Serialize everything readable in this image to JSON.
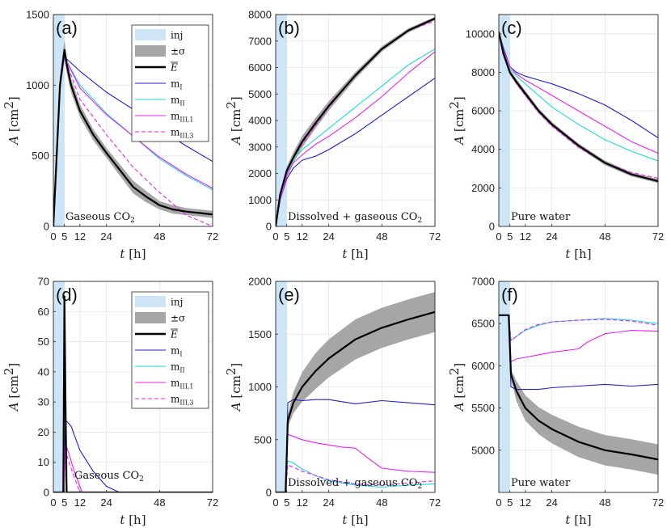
{
  "figure": {
    "xlabel_var": "t",
    "xlabel_unit": "[h]",
    "ylabel_var": "A",
    "ylabel_unit_base": "[cm",
    "ylabel_unit_exp": "2",
    "ylabel_unit_close": "]"
  },
  "legend": {
    "entries": [
      {
        "key": "inj",
        "label": "inj",
        "style": "patch",
        "color": "#cce5f7"
      },
      {
        "key": "sigma",
        "label": "±σ",
        "style": "band",
        "color": "#a6a6a6"
      },
      {
        "key": "E",
        "label": "E",
        "style": "thick",
        "color": "#000000"
      },
      {
        "key": "mI",
        "label": "m",
        "sub": "I",
        "style": "line",
        "color": "#1f1fd2"
      },
      {
        "key": "mII",
        "label": "m",
        "sub": "II",
        "style": "line",
        "color": "#19d9d9"
      },
      {
        "key": "mIII1",
        "label": "m",
        "sub": "III,1",
        "style": "line",
        "color": "#ee1fee"
      },
      {
        "key": "mIII3",
        "label": "m",
        "sub": "III,3",
        "style": "dashed",
        "color": "#ee1fee"
      }
    ]
  },
  "chart_data": [
    {
      "id": "a",
      "label": "(a)",
      "type": "line",
      "annotation": {
        "text": "Gaseous CO",
        "sub": "2"
      },
      "xticks": [
        0,
        5,
        12,
        24,
        48,
        72
      ],
      "xlim": [
        0,
        72
      ],
      "ylim": [
        0,
        1500
      ],
      "yticks": [
        0,
        500,
        1000,
        1500
      ],
      "inj": [
        0,
        5
      ],
      "legend": true,
      "E": {
        "x": [
          0,
          3,
          5,
          6,
          8,
          12,
          18,
          24,
          30,
          36,
          42,
          48,
          54,
          60,
          66,
          72
        ],
        "y": [
          0,
          1000,
          1250,
          1150,
          1000,
          820,
          650,
          520,
          400,
          280,
          210,
          150,
          120,
          105,
          95,
          85
        ]
      },
      "sigma": [
        0,
        60,
        70,
        60,
        50,
        45,
        40,
        35,
        40,
        45,
        40,
        30,
        30,
        25,
        25,
        25
      ],
      "series": [
        {
          "key": "mI",
          "x": [
            0,
            3,
            5,
            12,
            24,
            36,
            48,
            60,
            72
          ],
          "y": [
            0,
            1000,
            1200,
            1100,
            950,
            830,
            690,
            570,
            460
          ]
        },
        {
          "key": "mII",
          "x": [
            0,
            3,
            5,
            12,
            24,
            36,
            48,
            60,
            72
          ],
          "y": [
            0,
            1000,
            1200,
            1000,
            800,
            640,
            480,
            360,
            260
          ]
        },
        {
          "key": "mIII1",
          "x": [
            0,
            3,
            5,
            12,
            24,
            36,
            48,
            60,
            72
          ],
          "y": [
            0,
            1000,
            1200,
            980,
            790,
            640,
            490,
            370,
            270
          ]
        },
        {
          "key": "mIII3",
          "x": [
            0,
            3,
            5,
            12,
            24,
            36,
            48,
            60,
            72
          ],
          "y": [
            0,
            1000,
            1200,
            900,
            650,
            420,
            240,
            80,
            0
          ]
        }
      ]
    },
    {
      "id": "b",
      "label": "(b)",
      "type": "line",
      "annotation": {
        "text": "Dissolved + gaseous CO",
        "sub": "2"
      },
      "xticks": [
        0,
        5,
        12,
        24,
        48,
        72
      ],
      "xlim": [
        0,
        72
      ],
      "ylim": [
        0,
        8000
      ],
      "yticks": [
        0,
        1000,
        2000,
        3000,
        4000,
        5000,
        6000,
        7000,
        8000
      ],
      "inj": [
        0,
        5
      ],
      "legend": false,
      "E": {
        "x": [
          0,
          2,
          5,
          8,
          12,
          18,
          24,
          36,
          48,
          60,
          72
        ],
        "y": [
          0,
          1200,
          2100,
          2600,
          3200,
          3900,
          4550,
          5700,
          6700,
          7400,
          7850
        ]
      },
      "sigma": [
        0,
        120,
        150,
        200,
        220,
        200,
        180,
        130,
        100,
        80,
        60
      ],
      "series": [
        {
          "key": "mI",
          "x": [
            0,
            2,
            5,
            8,
            12,
            18,
            24,
            36,
            48,
            60,
            72
          ],
          "y": [
            0,
            1000,
            1800,
            2200,
            2500,
            2650,
            2900,
            3500,
            4200,
            4900,
            5600
          ]
        },
        {
          "key": "mII",
          "x": [
            0,
            2,
            5,
            8,
            12,
            18,
            24,
            36,
            48,
            60,
            72
          ],
          "y": [
            0,
            1000,
            1900,
            2500,
            2900,
            3300,
            3700,
            4500,
            5300,
            6100,
            6700
          ]
        },
        {
          "key": "mIII1",
          "x": [
            0,
            2,
            5,
            8,
            12,
            18,
            24,
            36,
            48,
            60,
            72
          ],
          "y": [
            0,
            1000,
            1900,
            2400,
            2700,
            3100,
            3400,
            4100,
            4900,
            5800,
            6600
          ]
        },
        {
          "key": "mIII3",
          "x": [
            0,
            2,
            5,
            8,
            12,
            18,
            24,
            36,
            48,
            60,
            72
          ],
          "y": [
            0,
            1100,
            2050,
            2600,
            3100,
            3800,
            4500,
            5700,
            6700,
            7400,
            7750
          ]
        }
      ]
    },
    {
      "id": "c",
      "label": "(c)",
      "type": "line",
      "annotation": {
        "text": "Pure water",
        "sub": ""
      },
      "xticks": [
        0,
        5,
        12,
        24,
        48,
        72
      ],
      "xlim": [
        0,
        72
      ],
      "ylim": [
        0,
        11000
      ],
      "yticks": [
        0,
        2000,
        4000,
        6000,
        8000,
        10000
      ],
      "inj": [
        0,
        5
      ],
      "legend": false,
      "E": {
        "x": [
          0,
          2,
          5,
          8,
          12,
          18,
          24,
          36,
          48,
          60,
          72
        ],
        "y": [
          10100,
          9000,
          8000,
          7500,
          6900,
          6000,
          5300,
          4200,
          3300,
          2700,
          2350
        ]
      },
      "sigma": [
        150,
        150,
        150,
        150,
        150,
        130,
        120,
        110,
        120,
        110,
        100
      ],
      "series": [
        {
          "key": "mI",
          "x": [
            0,
            2,
            5,
            8,
            12,
            18,
            24,
            36,
            48,
            60,
            72
          ],
          "y": [
            10100,
            9300,
            8300,
            8000,
            7800,
            7600,
            7400,
            6900,
            6300,
            5500,
            4600
          ]
        },
        {
          "key": "mII",
          "x": [
            0,
            2,
            5,
            8,
            12,
            18,
            24,
            36,
            48,
            60,
            72
          ],
          "y": [
            10100,
            9200,
            8200,
            7800,
            7400,
            6800,
            6200,
            5300,
            4500,
            3900,
            3400
          ]
        },
        {
          "key": "mIII1",
          "x": [
            0,
            2,
            5,
            8,
            12,
            18,
            24,
            36,
            48,
            60,
            72
          ],
          "y": [
            10100,
            9200,
            8300,
            7900,
            7600,
            7200,
            6800,
            6000,
            5200,
            4400,
            3800
          ]
        },
        {
          "key": "mIII3",
          "x": [
            0,
            2,
            5,
            8,
            12,
            18,
            24,
            36,
            48,
            60,
            72
          ],
          "y": [
            10100,
            9100,
            8000,
            7400,
            6800,
            5900,
            5200,
            4100,
            3300,
            2800,
            2500
          ]
        }
      ]
    },
    {
      "id": "d",
      "label": "(d)",
      "type": "line",
      "annotation": {
        "text": "Gaseous CO",
        "sub": "2"
      },
      "xticks": [
        0,
        5,
        12,
        24,
        48,
        72
      ],
      "xlim": [
        0,
        72
      ],
      "ylim": [
        0,
        70
      ],
      "yticks": [
        0,
        10,
        20,
        30,
        40,
        50,
        60,
        70
      ],
      "inj": [
        0,
        5
      ],
      "legend": true,
      "E": {
        "x": [
          0,
          4.5,
          5,
          5.5,
          6,
          72
        ],
        "y": [
          0,
          0,
          65,
          30,
          0,
          0
        ]
      },
      "sigma": [
        0,
        0,
        0,
        0,
        0,
        0
      ],
      "series": [
        {
          "key": "mI",
          "x": [
            0,
            4.8,
            5.5,
            8,
            12,
            18,
            24,
            30,
            72
          ],
          "y": [
            0,
            0,
            24,
            22,
            14,
            7,
            2,
            0,
            0
          ]
        },
        {
          "key": "mII",
          "x": [
            0,
            4.8,
            5,
            5.5,
            6,
            7,
            72
          ],
          "y": [
            0,
            0,
            65,
            35,
            0,
            0,
            0
          ]
        },
        {
          "key": "mIII1",
          "x": [
            0,
            4.8,
            5.5,
            7,
            9,
            12,
            13,
            72
          ],
          "y": [
            0,
            0,
            16,
            13,
            8,
            2,
            0,
            0
          ]
        },
        {
          "key": "mIII3",
          "x": [
            0,
            4.8,
            5.5,
            7,
            9,
            11,
            12,
            72
          ],
          "y": [
            0,
            0,
            14,
            10,
            6,
            2,
            0,
            0
          ]
        }
      ]
    },
    {
      "id": "e",
      "label": "(e)",
      "type": "line",
      "annotation": {
        "text": "Dissolved + gaseous CO",
        "sub": "2"
      },
      "xticks": [
        0,
        5,
        12,
        24,
        48,
        72
      ],
      "xlim": [
        0,
        72
      ],
      "ylim": [
        0,
        2000
      ],
      "yticks": [
        0,
        500,
        1000,
        1500,
        2000
      ],
      "inj": [
        0,
        5
      ],
      "legend": false,
      "E": {
        "x": [
          0,
          4.5,
          5.5,
          8,
          12,
          18,
          24,
          36,
          48,
          60,
          72
        ],
        "y": [
          0,
          0,
          680,
          850,
          1000,
          1150,
          1270,
          1450,
          1560,
          1640,
          1710
        ]
      },
      "sigma": [
        0,
        0,
        60,
        100,
        140,
        170,
        180,
        190,
        190,
        190,
        190
      ],
      "series": [
        {
          "key": "mI",
          "x": [
            0,
            4.5,
            5.5,
            8,
            12,
            18,
            24,
            30,
            36,
            48,
            60,
            72
          ],
          "y": [
            0,
            0,
            850,
            880,
            870,
            880,
            880,
            860,
            840,
            870,
            850,
            830
          ]
        },
        {
          "key": "mII",
          "x": [
            0,
            4.5,
            5.5,
            8,
            12,
            18,
            24,
            36,
            48,
            60,
            72
          ],
          "y": [
            0,
            0,
            300,
            280,
            220,
            160,
            110,
            70,
            50,
            70,
            80
          ]
        },
        {
          "key": "mIII1",
          "x": [
            0,
            4.5,
            5.5,
            8,
            12,
            18,
            24,
            30,
            36,
            42,
            48,
            60,
            72
          ],
          "y": [
            0,
            0,
            550,
            530,
            500,
            470,
            450,
            430,
            420,
            320,
            230,
            200,
            190
          ]
        },
        {
          "key": "mIII3",
          "x": [
            0,
            4.5,
            5.5,
            8,
            12,
            18,
            24,
            36,
            48,
            60,
            72
          ],
          "y": [
            0,
            0,
            260,
            240,
            200,
            160,
            120,
            80,
            70,
            90,
            110
          ]
        }
      ]
    },
    {
      "id": "f",
      "label": "(f)",
      "type": "line",
      "annotation": {
        "text": "Pure water",
        "sub": ""
      },
      "xticks": [
        0,
        5,
        12,
        24,
        48,
        72
      ],
      "xlim": [
        0,
        72
      ],
      "ylim": [
        4500,
        7000
      ],
      "yticks": [
        5000,
        5500,
        6000,
        6500,
        7000
      ],
      "inj": [
        0,
        5
      ],
      "legend": false,
      "E": {
        "x": [
          0,
          4.5,
          5.5,
          8,
          12,
          18,
          24,
          36,
          48,
          60,
          72
        ],
        "y": [
          6600,
          6600,
          5900,
          5700,
          5500,
          5350,
          5250,
          5100,
          5000,
          4950,
          4890
        ]
      },
      "sigma": [
        0,
        0,
        60,
        120,
        150,
        160,
        170,
        180,
        180,
        180,
        180
      ],
      "series": [
        {
          "key": "mI",
          "x": [
            0,
            4.5,
            5.5,
            8,
            12,
            18,
            24,
            36,
            48,
            60,
            72
          ],
          "y": [
            6600,
            6600,
            5750,
            5720,
            5720,
            5720,
            5740,
            5760,
            5780,
            5760,
            5780
          ]
        },
        {
          "key": "mII",
          "x": [
            0,
            4.5,
            5.5,
            8,
            12,
            18,
            24,
            36,
            48,
            60,
            72
          ],
          "y": [
            6600,
            6600,
            6300,
            6350,
            6420,
            6480,
            6520,
            6540,
            6560,
            6540,
            6500
          ]
        },
        {
          "key": "mIII1",
          "x": [
            0,
            4.5,
            5.5,
            8,
            12,
            18,
            24,
            36,
            40,
            48,
            60,
            72
          ],
          "y": [
            6600,
            6600,
            6050,
            6080,
            6100,
            6130,
            6160,
            6200,
            6280,
            6380,
            6420,
            6410
          ]
        },
        {
          "key": "mIII3",
          "x": [
            0,
            4.5,
            5.5,
            8,
            12,
            18,
            24,
            36,
            48,
            60,
            72
          ],
          "y": [
            6600,
            6600,
            6300,
            6350,
            6430,
            6490,
            6520,
            6540,
            6550,
            6530,
            6480
          ]
        }
      ]
    }
  ]
}
